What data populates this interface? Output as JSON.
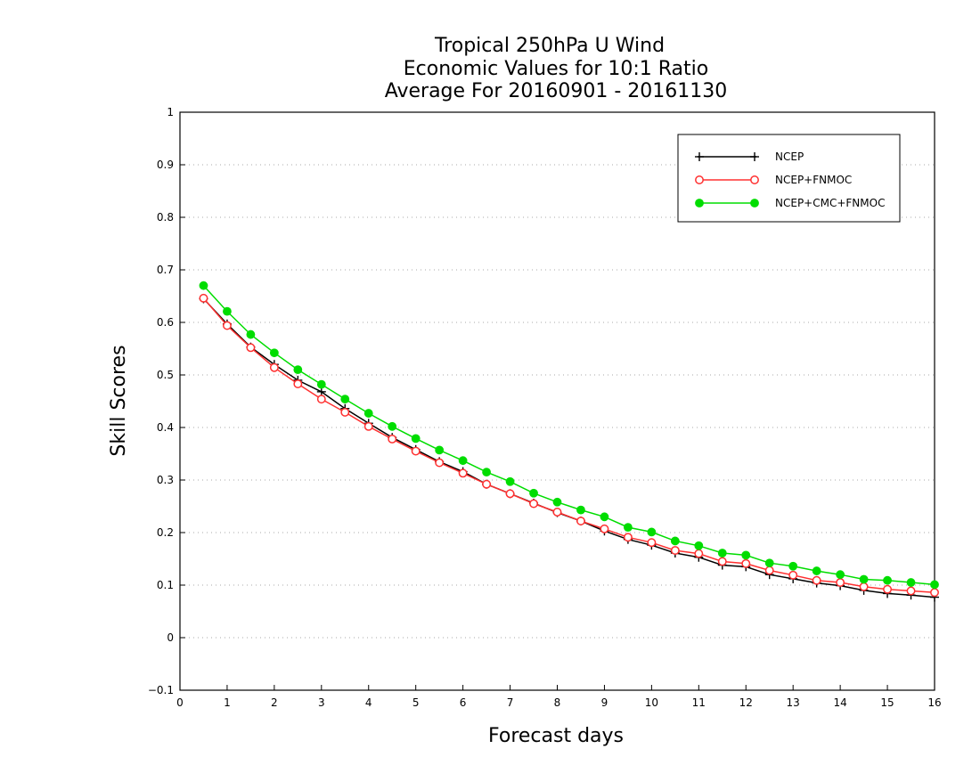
{
  "chart_data": {
    "type": "line",
    "title": [
      "Tropical 250hPa U Wind",
      "Economic Values for 10:1 Ratio",
      "Average For 20160901 - 20161130"
    ],
    "xlabel": "Forecast days",
    "ylabel": "Skill Scores",
    "xlim": [
      0,
      16
    ],
    "ylim": [
      -0.1,
      1
    ],
    "xticks": [
      0,
      1,
      2,
      3,
      4,
      5,
      6,
      7,
      8,
      9,
      10,
      11,
      12,
      13,
      14,
      15,
      16
    ],
    "yticks": [
      -0.1,
      0,
      0.1,
      0.2,
      0.3,
      0.4,
      0.5,
      0.6,
      0.7,
      0.8,
      0.9,
      1
    ],
    "ytick_labels": [
      "−0.1",
      "0",
      "0.1",
      "0.2",
      "0.3",
      "0.4",
      "0.5",
      "0.6",
      "0.7",
      "0.8",
      "0.9",
      "1"
    ],
    "grid": "horizontal dotted",
    "legend_position": "top-right",
    "x": [
      0.5,
      1,
      1.5,
      2,
      2.5,
      3,
      3.5,
      4,
      4.5,
      5,
      5.5,
      6,
      6.5,
      7,
      7.5,
      8,
      8.5,
      9,
      9.5,
      10,
      10.5,
      11,
      11.5,
      12,
      12.5,
      13,
      13.5,
      14,
      14.5,
      15,
      15.5,
      16
    ],
    "series": [
      {
        "name": "NCEP",
        "color": "#000000",
        "marker": "plus",
        "values": [
          0.645,
          0.597,
          0.553,
          0.52,
          0.49,
          0.468,
          0.436,
          0.408,
          0.381,
          0.358,
          0.335,
          0.316,
          0.292,
          0.274,
          0.256,
          0.238,
          0.222,
          0.203,
          0.187,
          0.176,
          0.161,
          0.153,
          0.138,
          0.135,
          0.12,
          0.112,
          0.104,
          0.099,
          0.09,
          0.084,
          0.081,
          0.077
        ]
      },
      {
        "name": "NCEP+FNMOC",
        "color": "#ff3030",
        "marker": "open-circle",
        "values": [
          0.646,
          0.594,
          0.552,
          0.514,
          0.483,
          0.454,
          0.429,
          0.402,
          0.378,
          0.355,
          0.333,
          0.313,
          0.292,
          0.274,
          0.255,
          0.239,
          0.222,
          0.207,
          0.191,
          0.181,
          0.166,
          0.16,
          0.145,
          0.141,
          0.128,
          0.119,
          0.109,
          0.105,
          0.097,
          0.092,
          0.089,
          0.086
        ]
      },
      {
        "name": "NCEP+CMC+FNMOC",
        "color": "#00dd00",
        "marker": "filled-circle",
        "values": [
          0.67,
          0.621,
          0.577,
          0.542,
          0.51,
          0.482,
          0.454,
          0.427,
          0.402,
          0.379,
          0.357,
          0.337,
          0.315,
          0.297,
          0.275,
          0.258,
          0.243,
          0.23,
          0.21,
          0.201,
          0.184,
          0.175,
          0.161,
          0.157,
          0.142,
          0.136,
          0.127,
          0.12,
          0.111,
          0.109,
          0.105,
          0.101
        ]
      }
    ]
  }
}
